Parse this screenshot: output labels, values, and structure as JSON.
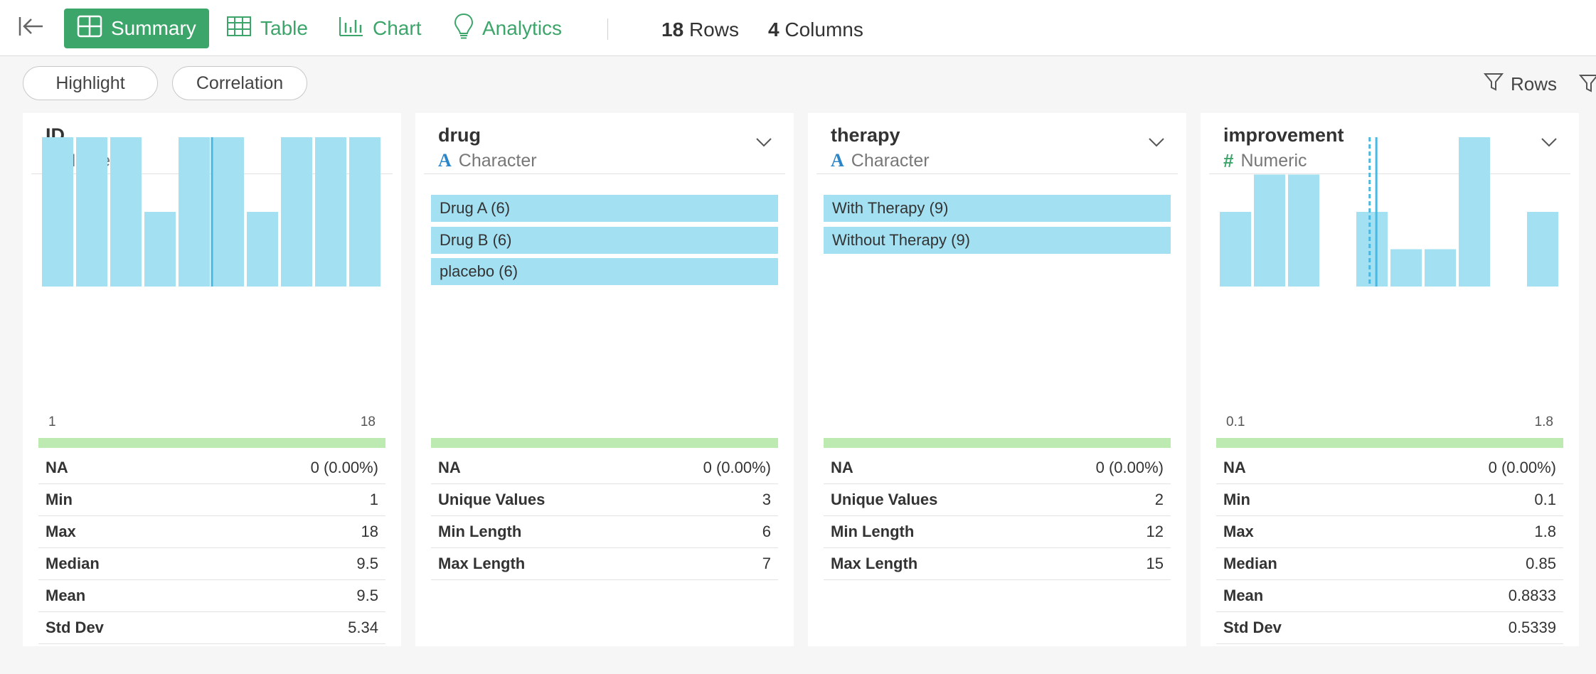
{
  "toolbar": {
    "nav": [
      {
        "label": "Summary",
        "active": true
      },
      {
        "label": "Table",
        "active": false
      },
      {
        "label": "Chart",
        "active": false
      },
      {
        "label": "Analytics",
        "active": false
      }
    ],
    "rows_count": "18",
    "rows_label": "Rows",
    "cols_count": "4",
    "cols_label": "Columns"
  },
  "subbar": {
    "highlight_label": "Highlight",
    "correlation_label": "Correlation",
    "rows_filter_label": "Rows"
  },
  "colors": {
    "accent": "#3ca56a",
    "bar": "#a3e0f2",
    "valid": "#bdeab0",
    "marker": "#4bb8e2"
  },
  "columns": [
    {
      "name": "ID",
      "type": "Numeric",
      "type_icon": "#",
      "axis_min": "1",
      "axis_max": "18",
      "stats": [
        {
          "label": "NA",
          "value": "0 (0.00%)"
        },
        {
          "label": "Min",
          "value": "1"
        },
        {
          "label": "Max",
          "value": "18"
        },
        {
          "label": "Median",
          "value": "9.5"
        },
        {
          "label": "Mean",
          "value": "9.5"
        },
        {
          "label": "Std Dev",
          "value": "5.34"
        }
      ]
    },
    {
      "name": "drug",
      "type": "Character",
      "type_icon": "A",
      "categories": [
        "Drug A (6)",
        "Drug B (6)",
        "placebo (6)"
      ],
      "stats": [
        {
          "label": "NA",
          "value": "0 (0.00%)"
        },
        {
          "label": "Unique Values",
          "value": "3"
        },
        {
          "label": "Min Length",
          "value": "6"
        },
        {
          "label": "Max Length",
          "value": "7"
        }
      ]
    },
    {
      "name": "therapy",
      "type": "Character",
      "type_icon": "A",
      "categories": [
        "With Therapy (9)",
        "Without Therapy (9)"
      ],
      "stats": [
        {
          "label": "NA",
          "value": "0 (0.00%)"
        },
        {
          "label": "Unique Values",
          "value": "2"
        },
        {
          "label": "Min Length",
          "value": "12"
        },
        {
          "label": "Max Length",
          "value": "15"
        }
      ]
    },
    {
      "name": "improvement",
      "type": "Numeric",
      "type_icon": "#",
      "axis_min": "0.1",
      "axis_max": "1.8",
      "stats": [
        {
          "label": "NA",
          "value": "0 (0.00%)"
        },
        {
          "label": "Min",
          "value": "0.1"
        },
        {
          "label": "Max",
          "value": "1.8"
        },
        {
          "label": "Median",
          "value": "0.85"
        },
        {
          "label": "Mean",
          "value": "0.8833"
        },
        {
          "label": "Std Dev",
          "value": "0.5339"
        }
      ]
    }
  ],
  "chart_data": [
    {
      "type": "bar",
      "title": "ID",
      "bins": 10,
      "values": [
        2,
        2,
        2,
        1,
        2,
        2,
        1,
        2,
        2,
        2
      ],
      "x_range": [
        1,
        18
      ],
      "median_marker": 9.5
    },
    {
      "type": "bar",
      "title": "improvement",
      "bins": 10,
      "values": [
        2,
        3,
        3,
        0,
        2,
        1,
        1,
        4,
        0,
        2
      ],
      "x_range": [
        0.1,
        1.8
      ],
      "median_marker": 0.85,
      "mean_marker": 0.8833
    }
  ]
}
